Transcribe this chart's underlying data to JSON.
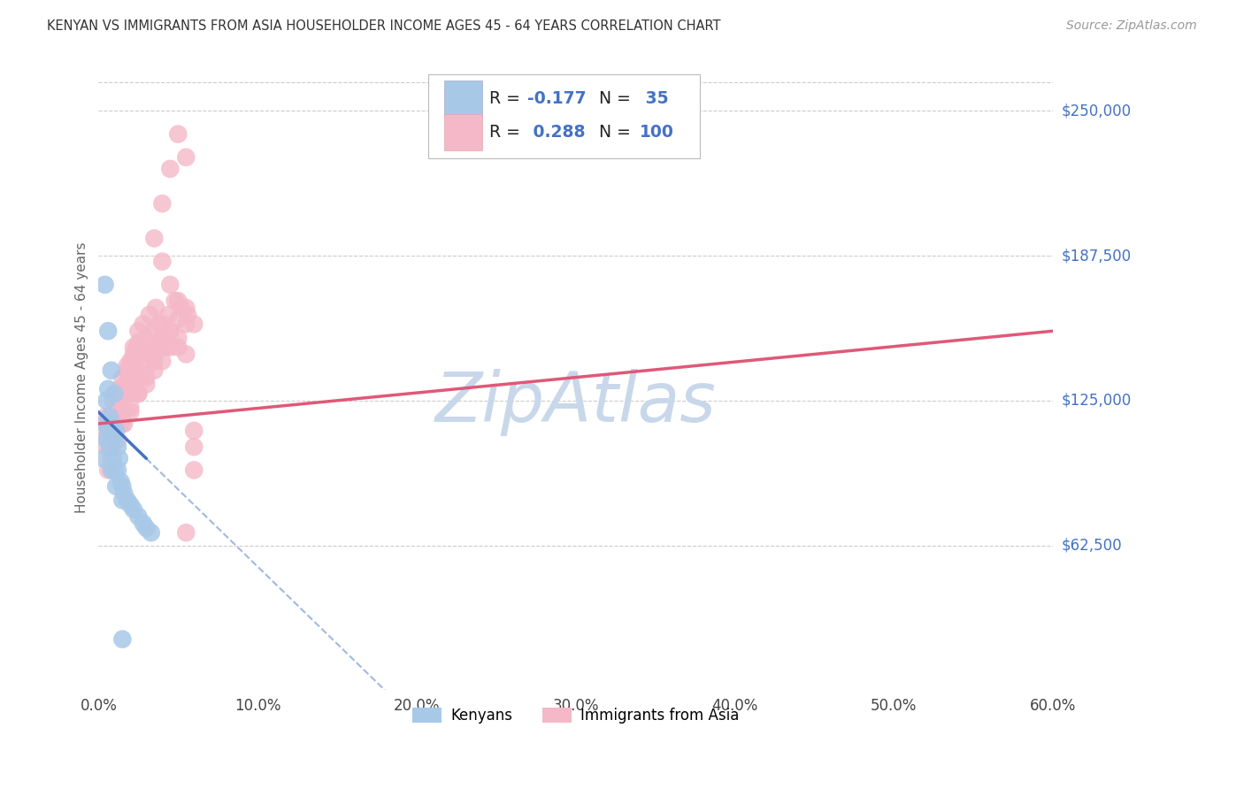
{
  "title": "KENYAN VS IMMIGRANTS FROM ASIA HOUSEHOLDER INCOME AGES 45 - 64 YEARS CORRELATION CHART",
  "source": "Source: ZipAtlas.com",
  "xlabel_ticks": [
    "0.0%",
    "10.0%",
    "20.0%",
    "30.0%",
    "40.0%",
    "50.0%",
    "60.0%"
  ],
  "ylabel_labels": [
    "$62,500",
    "$125,000",
    "$187,500",
    "$250,000"
  ],
  "ylabel_values": [
    62500,
    125000,
    187500,
    250000
  ],
  "ylabel_axis_label": "Householder Income Ages 45 - 64 years",
  "xmin": 0.0,
  "xmax": 0.6,
  "ymin": 0,
  "ymax": 270000,
  "blue_R": -0.177,
  "blue_N": 35,
  "pink_R": 0.288,
  "pink_N": 100,
  "bg_color": "#ffffff",
  "grid_color": "#cccccc",
  "blue_color": "#a8c8e8",
  "pink_color": "#f4b8c8",
  "blue_line_color": "#4472c4",
  "pink_line_color": "#e05878",
  "watermark_text_color": "#c8d8ea",
  "legend_label_blue": "Kenyans",
  "legend_label_pink": "Immigrants from Asia",
  "legend_number_color": "#4472c4",
  "legend_text_color": "#222222",
  "blue_x": [
    0.003,
    0.004,
    0.005,
    0.005,
    0.006,
    0.006,
    0.007,
    0.007,
    0.008,
    0.008,
    0.009,
    0.009,
    0.01,
    0.01,
    0.011,
    0.011,
    0.012,
    0.012,
    0.013,
    0.014,
    0.015,
    0.016,
    0.018,
    0.02,
    0.022,
    0.025,
    0.028,
    0.03,
    0.033,
    0.004,
    0.006,
    0.008,
    0.01,
    0.015,
    0.015
  ],
  "blue_y": [
    100000,
    115000,
    108000,
    125000,
    112000,
    130000,
    118000,
    105000,
    115000,
    95000,
    110000,
    100000,
    108000,
    95000,
    112000,
    88000,
    105000,
    95000,
    100000,
    90000,
    88000,
    85000,
    82000,
    80000,
    78000,
    75000,
    72000,
    70000,
    68000,
    175000,
    155000,
    138000,
    128000,
    82000,
    22000
  ],
  "pink_x": [
    0.004,
    0.005,
    0.006,
    0.007,
    0.008,
    0.009,
    0.01,
    0.011,
    0.012,
    0.013,
    0.014,
    0.015,
    0.016,
    0.017,
    0.018,
    0.019,
    0.02,
    0.021,
    0.022,
    0.024,
    0.025,
    0.026,
    0.028,
    0.03,
    0.032,
    0.034,
    0.036,
    0.038,
    0.04,
    0.042,
    0.006,
    0.008,
    0.01,
    0.012,
    0.014,
    0.016,
    0.018,
    0.02,
    0.022,
    0.025,
    0.028,
    0.032,
    0.036,
    0.04,
    0.044,
    0.048,
    0.052,
    0.056,
    0.06,
    0.015,
    0.02,
    0.025,
    0.03,
    0.035,
    0.04,
    0.045,
    0.05,
    0.055,
    0.06,
    0.01,
    0.015,
    0.02,
    0.025,
    0.03,
    0.035,
    0.04,
    0.045,
    0.05,
    0.055,
    0.06,
    0.008,
    0.012,
    0.016,
    0.02,
    0.025,
    0.03,
    0.035,
    0.04,
    0.045,
    0.05,
    0.055,
    0.06,
    0.035,
    0.04,
    0.045,
    0.05,
    0.055,
    0.04,
    0.045,
    0.05,
    0.03,
    0.025,
    0.02,
    0.015,
    0.01,
    0.008,
    0.006,
    0.005,
    0.004,
    0.055
  ],
  "pink_y": [
    115000,
    110000,
    108000,
    118000,
    112000,
    125000,
    120000,
    128000,
    118000,
    130000,
    122000,
    135000,
    128000,
    132000,
    140000,
    135000,
    138000,
    142000,
    145000,
    148000,
    150000,
    145000,
    148000,
    152000,
    148000,
    155000,
    150000,
    158000,
    152000,
    148000,
    95000,
    105000,
    112000,
    118000,
    125000,
    130000,
    138000,
    142000,
    148000,
    155000,
    158000,
    162000,
    165000,
    158000,
    162000,
    168000,
    165000,
    162000,
    158000,
    120000,
    128000,
    135000,
    140000,
    145000,
    150000,
    155000,
    148000,
    145000,
    105000,
    110000,
    115000,
    120000,
    128000,
    132000,
    138000,
    142000,
    148000,
    152000,
    158000,
    95000,
    100000,
    108000,
    115000,
    122000,
    128000,
    135000,
    142000,
    148000,
    155000,
    160000,
    165000,
    112000,
    195000,
    210000,
    225000,
    240000,
    230000,
    185000,
    175000,
    168000,
    145000,
    138000,
    132000,
    118000,
    108000,
    98000,
    110000,
    105000,
    118000,
    68000
  ]
}
